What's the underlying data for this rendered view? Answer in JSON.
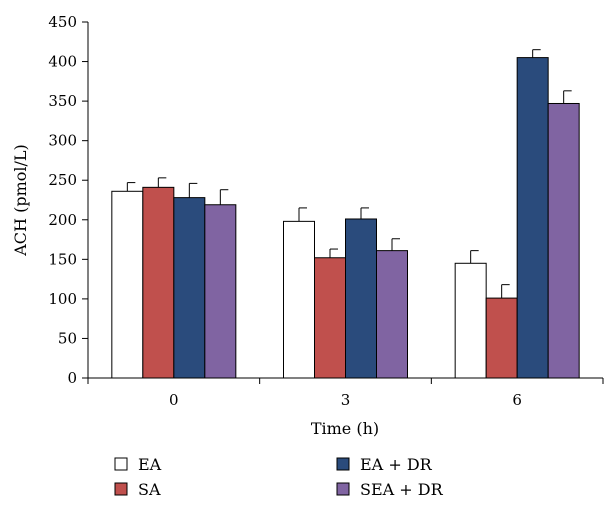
{
  "chart_data": {
    "type": "bar",
    "categories": [
      "0",
      "3",
      "6"
    ],
    "series": [
      {
        "name": "EA",
        "color": "#ffffff",
        "values": [
          236,
          198,
          145
        ],
        "errors": [
          11,
          17,
          16
        ]
      },
      {
        "name": "SA",
        "color": "#c0504d",
        "values": [
          241,
          152,
          101
        ],
        "errors": [
          12,
          11,
          17
        ]
      },
      {
        "name": "EA + DR",
        "color": "#2a4b7c",
        "values": [
          228,
          201,
          405
        ],
        "errors": [
          18,
          14,
          10
        ]
      },
      {
        "name": "SEA + DR",
        "color": "#8064a2",
        "values": [
          219,
          161,
          347
        ],
        "errors": [
          19,
          15,
          16
        ]
      }
    ],
    "xlabel": "Time (h)",
    "ylabel": "ACH (pmol/L)",
    "ylim": [
      0,
      450
    ],
    "yticks": [
      0,
      50,
      100,
      150,
      200,
      250,
      300,
      350,
      400,
      450
    ],
    "grid": false,
    "legend_position": "bottom"
  }
}
